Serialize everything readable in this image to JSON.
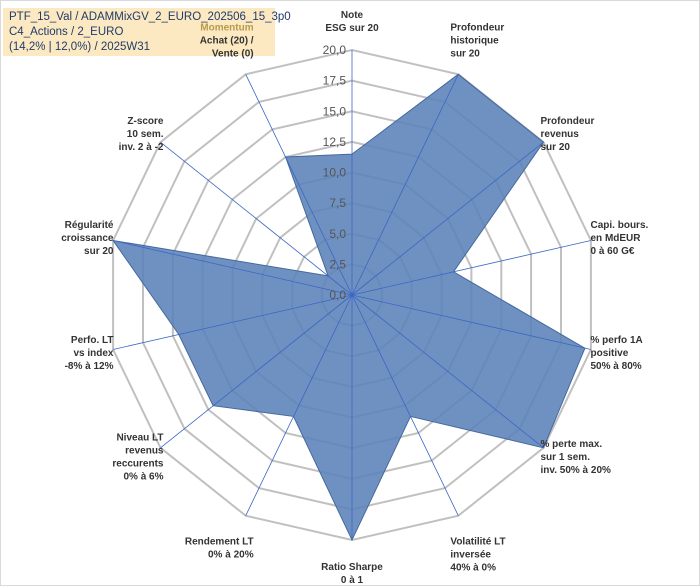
{
  "info": {
    "line1": "PTF_15_Val / ADAMMixGV_2_EURO_202506_15_3p0",
    "line2": "C4_Actions / 2_EURO",
    "line3": "(14,2% | 12,0%) / 2025W31"
  },
  "chart_data": {
    "type": "radar",
    "scale": [
      0,
      20
    ],
    "ticks": [
      "0,0",
      "2,5",
      "5,0",
      "7,5",
      "10,0",
      "12,5",
      "15,0",
      "17,5",
      "20,0"
    ],
    "axes": [
      {
        "label": [
          "Note",
          "ESG sur 20"
        ],
        "value": 11.5
      },
      {
        "label": [
          "Profondeur",
          "historique",
          "sur 20"
        ],
        "value": 20
      },
      {
        "label": [
          "Profondeur",
          "revenus",
          "sur 20"
        ],
        "value": 20
      },
      {
        "label": [
          "Capi. bours.",
          "en MdEUR",
          "0 à 60 G€"
        ],
        "value": 8.5
      },
      {
        "label": [
          "% perfo 1A",
          "positive",
          "50% à 80%"
        ],
        "value": 19.5
      },
      {
        "label": [
          "% perte max.",
          "sur 1 sem.",
          "inv. 50% à 20%"
        ],
        "value": 20
      },
      {
        "label": [
          "Volatilité LT",
          "inversée",
          "40% à 0%"
        ],
        "value": 11
      },
      {
        "label": [
          "Ratio Sharpe",
          "0 à 1"
        ],
        "value": 20
      },
      {
        "label": [
          "Rendement LT",
          "0% à 20%"
        ],
        "value": 11
      },
      {
        "label": [
          "Niveau LT",
          "revenus",
          "reccurents",
          "0% à 6%"
        ],
        "value": 14.5
      },
      {
        "label": [
          "Perfo. LT",
          "vs index",
          "-8% à 12%"
        ],
        "value": 14.5
      },
      {
        "label": [
          "Régularité",
          "croissance",
          "sur 20"
        ],
        "value": 20
      },
      {
        "label": [
          "Z-score",
          "10 sem.",
          "inv. 2 à -2"
        ],
        "value": 2.5
      },
      {
        "label": [
          "Momentum",
          "Achat (20) /",
          "Vente (0)"
        ],
        "value": 12.5,
        "highlight_first_line": true
      }
    ],
    "colors": {
      "fill": "#5b82b8",
      "fill_stroke": "#44699e",
      "grid": "#c0c0c0",
      "spoke": "#3a67c4",
      "highlight_label": "#b79a4a",
      "info_box": "#fde9c1"
    }
  }
}
